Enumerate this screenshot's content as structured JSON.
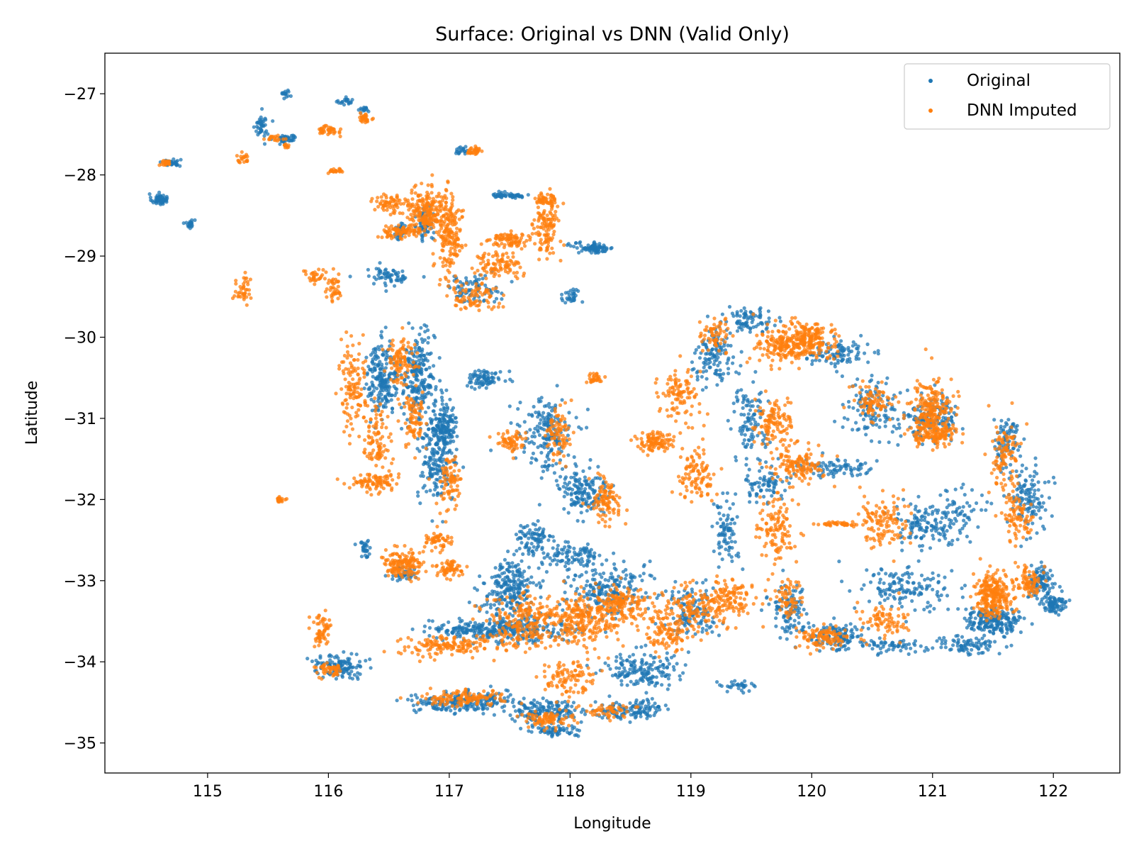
{
  "chart_data": {
    "type": "scatter",
    "title": "Surface: Original vs DNN (Valid Only)",
    "xlabel": "Longitude",
    "ylabel": "Latitude",
    "xlim": [
      114.15,
      122.55
    ],
    "ylim": [
      -35.37,
      -26.5
    ],
    "xticks": [
      115,
      116,
      117,
      118,
      119,
      120,
      121,
      122
    ],
    "yticks": [
      -27,
      -28,
      -29,
      -30,
      -31,
      -32,
      -33,
      -34,
      -35
    ],
    "grid": false,
    "legend_position": "upper-right",
    "series": [
      {
        "name": "Original",
        "color": "#1f77b4",
        "clusters": [
          [
            114.6,
            -28.3,
            0.06,
            0.06,
            60
          ],
          [
            114.7,
            -27.85,
            0.07,
            0.04,
            40
          ],
          [
            114.85,
            -28.6,
            0.04,
            0.05,
            20
          ],
          [
            115.45,
            -27.4,
            0.05,
            0.15,
            40
          ],
          [
            115.65,
            -27.55,
            0.08,
            0.05,
            40
          ],
          [
            115.65,
            -27.0,
            0.04,
            0.05,
            15
          ],
          [
            116.15,
            -27.1,
            0.06,
            0.04,
            20
          ],
          [
            116.3,
            -27.2,
            0.04,
            0.03,
            15
          ],
          [
            116.8,
            -28.6,
            0.06,
            0.2,
            70
          ],
          [
            116.6,
            -28.7,
            0.05,
            0.1,
            40
          ],
          [
            117.5,
            -28.25,
            0.15,
            0.03,
            50
          ],
          [
            118.2,
            -28.9,
            0.15,
            0.06,
            80
          ],
          [
            117.1,
            -27.7,
            0.05,
            0.05,
            20
          ],
          [
            116.5,
            -29.25,
            0.2,
            0.1,
            60
          ],
          [
            117.2,
            -29.4,
            0.2,
            0.15,
            80
          ],
          [
            118.0,
            -29.5,
            0.08,
            0.1,
            30
          ],
          [
            116.45,
            -30.5,
            0.12,
            0.4,
            200
          ],
          [
            116.75,
            -30.5,
            0.12,
            0.5,
            220
          ],
          [
            116.95,
            -31.1,
            0.1,
            0.25,
            160
          ],
          [
            116.9,
            -31.6,
            0.15,
            0.4,
            150
          ],
          [
            117.3,
            -30.5,
            0.15,
            0.1,
            80
          ],
          [
            117.8,
            -31.2,
            0.2,
            0.4,
            180
          ],
          [
            118.1,
            -31.9,
            0.2,
            0.3,
            150
          ],
          [
            117.7,
            -32.5,
            0.15,
            0.2,
            80
          ],
          [
            118.0,
            -32.7,
            0.25,
            0.15,
            100
          ],
          [
            117.5,
            -33.1,
            0.2,
            0.3,
            220
          ],
          [
            117.6,
            -33.6,
            0.4,
            0.15,
            200
          ],
          [
            117.2,
            -33.6,
            0.35,
            0.1,
            120
          ],
          [
            118.3,
            -33.1,
            0.3,
            0.3,
            200
          ],
          [
            118.6,
            -34.1,
            0.3,
            0.2,
            160
          ],
          [
            117.1,
            -34.5,
            0.35,
            0.12,
            200
          ],
          [
            117.8,
            -34.6,
            0.25,
            0.12,
            150
          ],
          [
            118.5,
            -34.6,
            0.3,
            0.1,
            120
          ],
          [
            117.9,
            -34.85,
            0.2,
            0.06,
            60
          ],
          [
            116.1,
            -34.05,
            0.2,
            0.12,
            120
          ],
          [
            116.6,
            -32.9,
            0.1,
            0.1,
            40
          ],
          [
            116.3,
            -32.6,
            0.05,
            0.1,
            30
          ],
          [
            119.2,
            -30.2,
            0.15,
            0.3,
            120
          ],
          [
            119.5,
            -29.8,
            0.2,
            0.15,
            80
          ],
          [
            119.5,
            -31.0,
            0.15,
            0.35,
            100
          ],
          [
            119.6,
            -31.8,
            0.2,
            0.2,
            80
          ],
          [
            119.3,
            -32.4,
            0.1,
            0.4,
            80
          ],
          [
            120.2,
            -30.2,
            0.25,
            0.15,
            100
          ],
          [
            120.5,
            -30.9,
            0.2,
            0.3,
            120
          ],
          [
            120.2,
            -31.6,
            0.3,
            0.1,
            80
          ],
          [
            120.9,
            -32.3,
            0.2,
            0.25,
            100
          ],
          [
            120.8,
            -33.1,
            0.35,
            0.25,
            140
          ],
          [
            120.2,
            -33.7,
            0.2,
            0.15,
            120
          ],
          [
            120.7,
            -33.8,
            0.3,
            0.08,
            60
          ],
          [
            121.0,
            -31.0,
            0.2,
            0.25,
            150
          ],
          [
            121.2,
            -32.2,
            0.2,
            0.3,
            80
          ],
          [
            121.5,
            -33.5,
            0.2,
            0.15,
            200
          ],
          [
            121.9,
            -33.0,
            0.1,
            0.2,
            100
          ],
          [
            122.0,
            -33.3,
            0.1,
            0.1,
            80
          ],
          [
            121.8,
            -32.0,
            0.15,
            0.4,
            120
          ],
          [
            121.6,
            -31.3,
            0.1,
            0.3,
            80
          ],
          [
            121.3,
            -33.8,
            0.25,
            0.1,
            80
          ],
          [
            119.0,
            -33.4,
            0.2,
            0.3,
            120
          ],
          [
            119.8,
            -33.4,
            0.15,
            0.3,
            100
          ],
          [
            119.4,
            -34.3,
            0.1,
            0.08,
            30
          ]
        ]
      },
      {
        "name": "DNN Imputed",
        "color": "#ff7f0e",
        "clusters": [
          [
            114.65,
            -27.85,
            0.04,
            0.04,
            20
          ],
          [
            115.55,
            -27.55,
            0.06,
            0.04,
            20
          ],
          [
            115.3,
            -29.4,
            0.08,
            0.15,
            40
          ],
          [
            115.65,
            -27.65,
            0.04,
            0.03,
            10
          ],
          [
            116.0,
            -27.45,
            0.1,
            0.05,
            40
          ],
          [
            116.3,
            -27.3,
            0.06,
            0.05,
            30
          ],
          [
            115.3,
            -27.8,
            0.05,
            0.05,
            20
          ],
          [
            116.5,
            -28.35,
            0.12,
            0.1,
            60
          ],
          [
            116.8,
            -28.45,
            0.15,
            0.25,
            200
          ],
          [
            117.0,
            -28.75,
            0.1,
            0.4,
            180
          ],
          [
            116.6,
            -28.7,
            0.15,
            0.08,
            80
          ],
          [
            117.5,
            -28.8,
            0.15,
            0.08,
            80
          ],
          [
            117.8,
            -28.6,
            0.1,
            0.3,
            120
          ],
          [
            117.4,
            -29.1,
            0.2,
            0.15,
            100
          ],
          [
            117.2,
            -29.5,
            0.2,
            0.15,
            80
          ],
          [
            117.8,
            -28.3,
            0.08,
            0.06,
            40
          ],
          [
            117.2,
            -27.7,
            0.06,
            0.04,
            30
          ],
          [
            116.05,
            -29.4,
            0.05,
            0.15,
            40
          ],
          [
            115.9,
            -29.25,
            0.08,
            0.08,
            30
          ],
          [
            116.2,
            -30.6,
            0.1,
            0.5,
            120
          ],
          [
            116.4,
            -31.3,
            0.1,
            0.4,
            100
          ],
          [
            116.6,
            -30.3,
            0.1,
            0.3,
            100
          ],
          [
            116.7,
            -31.0,
            0.1,
            0.3,
            80
          ],
          [
            117.0,
            -31.8,
            0.1,
            0.3,
            80
          ],
          [
            116.4,
            -31.8,
            0.2,
            0.1,
            80
          ],
          [
            117.5,
            -31.3,
            0.1,
            0.15,
            60
          ],
          [
            117.9,
            -31.2,
            0.1,
            0.3,
            80
          ],
          [
            118.3,
            -32.0,
            0.1,
            0.25,
            100
          ],
          [
            116.6,
            -32.8,
            0.15,
            0.15,
            150
          ],
          [
            116.9,
            -32.5,
            0.1,
            0.1,
            50
          ],
          [
            117.0,
            -32.85,
            0.12,
            0.1,
            60
          ],
          [
            117.6,
            -33.5,
            0.3,
            0.3,
            200
          ],
          [
            118.1,
            -33.5,
            0.3,
            0.3,
            250
          ],
          [
            118.4,
            -33.3,
            0.2,
            0.2,
            150
          ],
          [
            117.0,
            -33.8,
            0.4,
            0.12,
            150
          ],
          [
            118.0,
            -34.2,
            0.2,
            0.2,
            100
          ],
          [
            118.8,
            -33.6,
            0.2,
            0.3,
            120
          ],
          [
            117.1,
            -34.45,
            0.3,
            0.1,
            120
          ],
          [
            117.8,
            -34.7,
            0.2,
            0.1,
            80
          ],
          [
            118.3,
            -34.6,
            0.2,
            0.08,
            50
          ],
          [
            115.95,
            -33.6,
            0.08,
            0.2,
            60
          ],
          [
            116.0,
            -34.1,
            0.1,
            0.08,
            50
          ],
          [
            115.6,
            -32.0,
            0.03,
            0.03,
            20
          ],
          [
            118.9,
            -30.7,
            0.15,
            0.3,
            100
          ],
          [
            118.7,
            -31.3,
            0.15,
            0.1,
            100
          ],
          [
            119.05,
            -31.7,
            0.15,
            0.3,
            100
          ],
          [
            119.2,
            -30.0,
            0.1,
            0.2,
            60
          ],
          [
            119.8,
            -30.1,
            0.25,
            0.2,
            200
          ],
          [
            120.0,
            -30.0,
            0.2,
            0.2,
            150
          ],
          [
            119.7,
            -31.1,
            0.15,
            0.3,
            120
          ],
          [
            119.9,
            -31.6,
            0.2,
            0.2,
            120
          ],
          [
            119.7,
            -32.4,
            0.15,
            0.4,
            120
          ],
          [
            120.2,
            -32.3,
            0.15,
            0.02,
            40
          ],
          [
            120.5,
            -30.8,
            0.15,
            0.2,
            80
          ],
          [
            120.6,
            -32.3,
            0.2,
            0.3,
            120
          ],
          [
            121.0,
            -30.9,
            0.15,
            0.35,
            220
          ],
          [
            121.0,
            -31.2,
            0.2,
            0.12,
            100
          ],
          [
            121.6,
            -31.5,
            0.1,
            0.4,
            100
          ],
          [
            121.7,
            -32.2,
            0.1,
            0.3,
            80
          ],
          [
            121.5,
            -33.2,
            0.15,
            0.25,
            250
          ],
          [
            121.8,
            -33.0,
            0.1,
            0.15,
            80
          ],
          [
            120.1,
            -33.7,
            0.2,
            0.12,
            100
          ],
          [
            120.6,
            -33.5,
            0.2,
            0.2,
            80
          ],
          [
            119.8,
            -33.2,
            0.1,
            0.2,
            60
          ],
          [
            119.1,
            -33.3,
            0.3,
            0.25,
            150
          ],
          [
            119.3,
            -33.2,
            0.2,
            0.2,
            80
          ],
          [
            118.2,
            -30.5,
            0.06,
            0.06,
            30
          ],
          [
            116.05,
            -27.95,
            0.05,
            0.03,
            20
          ]
        ]
      }
    ]
  }
}
